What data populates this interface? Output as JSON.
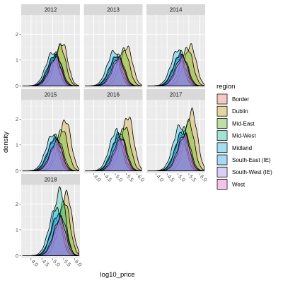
{
  "chart_data": {
    "type": "area",
    "subtype": "overlapping density curves, faceted by year",
    "xlabel": "log10_price",
    "ylabel": "density",
    "x_ticks": [
      "4.0",
      "4.5",
      "5.0",
      "5.5",
      "6.0"
    ],
    "y_ticks": [
      "0",
      "1",
      "2"
    ],
    "xlim": [
      3.55,
      6.25
    ],
    "ylim": [
      -0.1,
      2.75
    ],
    "grid": true,
    "facets": [
      "2012",
      "2013",
      "2014",
      "2015",
      "2016",
      "2017",
      "2018"
    ],
    "legend": {
      "title": "region",
      "position": "right",
      "entries": [
        {
          "label": "Border",
          "color": "#F8766D"
        },
        {
          "label": "Dublin",
          "color": "#C49A00"
        },
        {
          "label": "Mid-East",
          "color": "#53B400"
        },
        {
          "label": "Mid-West",
          "color": "#00C094"
        },
        {
          "label": "Midland",
          "color": "#00B6EB"
        },
        {
          "label": "South-East (IE)",
          "color": "#06A4FF"
        },
        {
          "label": "South-West (IE)",
          "color": "#A58AFF"
        },
        {
          "label": "West",
          "color": "#FB61D7"
        }
      ]
    },
    "series": [
      {
        "year": "2012",
        "region": "Border",
        "peak_x": 5.05,
        "peak_y": 1.1
      },
      {
        "year": "2012",
        "region": "Dublin",
        "peak_x": 5.45,
        "peak_y": 1.65
      },
      {
        "year": "2012",
        "region": "Mid-East",
        "peak_x": 5.35,
        "peak_y": 1.55
      },
      {
        "year": "2012",
        "region": "Mid-West",
        "peak_x": 5.15,
        "peak_y": 1.25
      },
      {
        "year": "2012",
        "region": "Midland",
        "peak_x": 5.0,
        "peak_y": 1.3
      },
      {
        "year": "2012",
        "region": "South-East (IE)",
        "peak_x": 5.1,
        "peak_y": 1.2
      },
      {
        "year": "2012",
        "region": "South-West (IE)",
        "peak_x": 5.2,
        "peak_y": 1.15
      },
      {
        "year": "2012",
        "region": "West",
        "peak_x": 5.15,
        "peak_y": 1.1
      },
      {
        "year": "2013",
        "region": "Border",
        "peak_x": 5.0,
        "peak_y": 1.0
      },
      {
        "year": "2013",
        "region": "Dublin",
        "peak_x": 5.55,
        "peak_y": 1.5
      },
      {
        "year": "2013",
        "region": "Mid-East",
        "peak_x": 5.4,
        "peak_y": 1.4
      },
      {
        "year": "2013",
        "region": "Mid-West",
        "peak_x": 5.1,
        "peak_y": 1.2
      },
      {
        "year": "2013",
        "region": "Midland",
        "peak_x": 4.95,
        "peak_y": 1.35
      },
      {
        "year": "2013",
        "region": "South-East (IE)",
        "peak_x": 5.05,
        "peak_y": 1.15
      },
      {
        "year": "2013",
        "region": "South-West (IE)",
        "peak_x": 5.2,
        "peak_y": 1.05
      },
      {
        "year": "2013",
        "region": "West",
        "peak_x": 5.15,
        "peak_y": 1.1
      },
      {
        "year": "2014",
        "region": "Border",
        "peak_x": 5.05,
        "peak_y": 1.05
      },
      {
        "year": "2014",
        "region": "Dublin",
        "peak_x": 5.6,
        "peak_y": 1.55
      },
      {
        "year": "2014",
        "region": "Mid-East",
        "peak_x": 5.45,
        "peak_y": 1.45
      },
      {
        "year": "2014",
        "region": "Mid-West",
        "peak_x": 5.15,
        "peak_y": 1.3
      },
      {
        "year": "2014",
        "region": "Midland",
        "peak_x": 5.0,
        "peak_y": 1.4
      },
      {
        "year": "2014",
        "region": "South-East (IE)",
        "peak_x": 5.1,
        "peak_y": 1.2
      },
      {
        "year": "2014",
        "region": "South-West (IE)",
        "peak_x": 5.25,
        "peak_y": 1.1
      },
      {
        "year": "2014",
        "region": "West",
        "peak_x": 5.2,
        "peak_y": 1.15
      },
      {
        "year": "2015",
        "region": "Border",
        "peak_x": 5.05,
        "peak_y": 1.1
      },
      {
        "year": "2015",
        "region": "Dublin",
        "peak_x": 5.6,
        "peak_y": 1.95
      },
      {
        "year": "2015",
        "region": "Mid-East",
        "peak_x": 5.45,
        "peak_y": 1.6
      },
      {
        "year": "2015",
        "region": "Mid-West",
        "peak_x": 5.15,
        "peak_y": 1.35
      },
      {
        "year": "2015",
        "region": "Midland",
        "peak_x": 5.0,
        "peak_y": 1.4
      },
      {
        "year": "2015",
        "region": "South-East (IE)",
        "peak_x": 5.1,
        "peak_y": 1.25
      },
      {
        "year": "2015",
        "region": "South-West (IE)",
        "peak_x": 5.25,
        "peak_y": 1.2
      },
      {
        "year": "2015",
        "region": "West",
        "peak_x": 5.2,
        "peak_y": 1.15
      },
      {
        "year": "2016",
        "region": "Border",
        "peak_x": 5.1,
        "peak_y": 1.2
      },
      {
        "year": "2016",
        "region": "Dublin",
        "peak_x": 5.6,
        "peak_y": 2.1
      },
      {
        "year": "2016",
        "region": "Mid-East",
        "peak_x": 5.45,
        "peak_y": 1.7
      },
      {
        "year": "2016",
        "region": "Mid-West",
        "peak_x": 5.2,
        "peak_y": 1.5
      },
      {
        "year": "2016",
        "region": "Midland",
        "peak_x": 5.05,
        "peak_y": 1.55
      },
      {
        "year": "2016",
        "region": "South-East (IE)",
        "peak_x": 5.15,
        "peak_y": 1.35
      },
      {
        "year": "2016",
        "region": "South-West (IE)",
        "peak_x": 5.3,
        "peak_y": 1.25
      },
      {
        "year": "2016",
        "region": "West",
        "peak_x": 5.25,
        "peak_y": 1.3
      },
      {
        "year": "2017",
        "region": "Border",
        "peak_x": 5.15,
        "peak_y": 1.3
      },
      {
        "year": "2017",
        "region": "Dublin",
        "peak_x": 5.65,
        "peak_y": 2.3
      },
      {
        "year": "2017",
        "region": "Mid-East",
        "peak_x": 5.5,
        "peak_y": 1.9
      },
      {
        "year": "2017",
        "region": "Mid-West",
        "peak_x": 5.25,
        "peak_y": 1.65
      },
      {
        "year": "2017",
        "region": "Midland",
        "peak_x": 5.1,
        "peak_y": 1.75
      },
      {
        "year": "2017",
        "region": "South-East (IE)",
        "peak_x": 5.2,
        "peak_y": 1.5
      },
      {
        "year": "2017",
        "region": "South-West (IE)",
        "peak_x": 5.35,
        "peak_y": 1.4
      },
      {
        "year": "2017",
        "region": "West",
        "peak_x": 5.3,
        "peak_y": 1.4
      },
      {
        "year": "2018",
        "region": "Border",
        "peak_x": 5.2,
        "peak_y": 1.4
      },
      {
        "year": "2018",
        "region": "Dublin",
        "peak_x": 5.65,
        "peak_y": 2.4
      },
      {
        "year": "2018",
        "region": "Mid-East",
        "peak_x": 5.55,
        "peak_y": 2.1
      },
      {
        "year": "2018",
        "region": "Mid-West",
        "peak_x": 5.35,
        "peak_y": 2.55
      },
      {
        "year": "2018",
        "region": "Midland",
        "peak_x": 5.15,
        "peak_y": 1.85
      },
      {
        "year": "2018",
        "region": "South-East (IE)",
        "peak_x": 5.25,
        "peak_y": 1.6
      },
      {
        "year": "2018",
        "region": "South-West (IE)",
        "peak_x": 5.4,
        "peak_y": 1.5
      },
      {
        "year": "2018",
        "region": "West",
        "peak_x": 5.35,
        "peak_y": 1.45
      }
    ]
  }
}
